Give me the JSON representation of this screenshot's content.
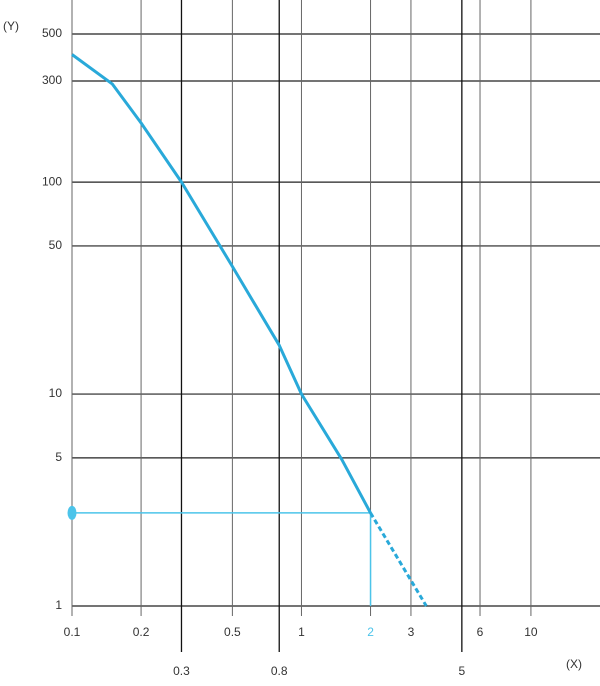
{
  "chart_data": {
    "type": "line",
    "x_label": "(X)",
    "y_label": "(Y)",
    "log_x": true,
    "log_y": true,
    "grid": true,
    "xlim": [
      0.1,
      20
    ],
    "ylim": [
      1,
      700
    ],
    "xticks": [
      0.1,
      0.2,
      0.5,
      1,
      2,
      3,
      6,
      10
    ],
    "xticks_lower": [
      0.3,
      0.8,
      5
    ],
    "yticks": [
      1,
      5,
      10,
      50,
      100,
      300,
      500
    ],
    "series": [
      {
        "color": "#29a9d9",
        "style": "solid",
        "x": [
          0.1,
          0.15,
          0.2,
          0.3,
          0.5,
          0.8,
          1,
          1.5,
          2
        ],
        "values": [
          400,
          290,
          190,
          100,
          40,
          17,
          10,
          4.9,
          2.75
        ]
      },
      {
        "color": "#29a9d9",
        "style": "dashed",
        "x": [
          2,
          3.5
        ],
        "values": [
          2.75,
          1
        ]
      }
    ],
    "highlight": {
      "x": 2,
      "y": 2.75,
      "color": "#4cc4ea"
    }
  }
}
